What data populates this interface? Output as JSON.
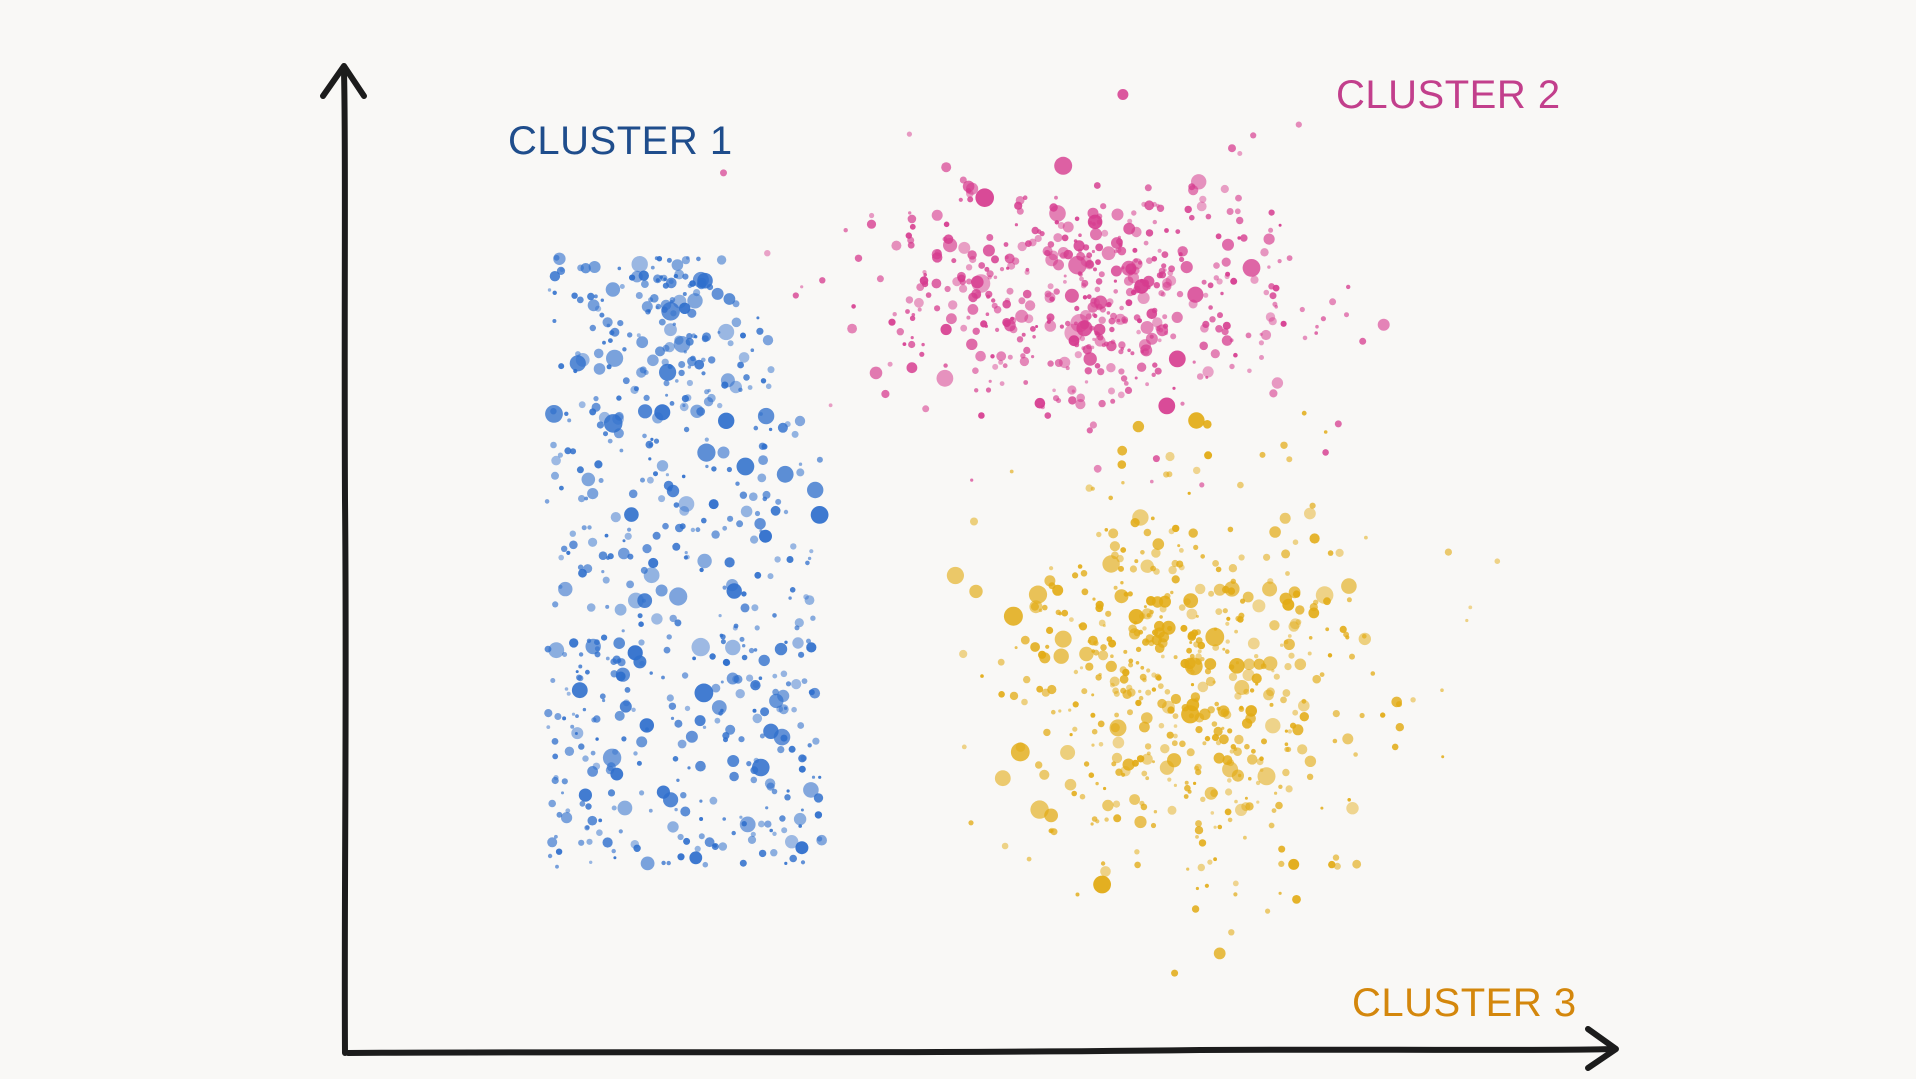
{
  "chart_data": {
    "type": "scatter",
    "title": "",
    "xlabel": "",
    "ylabel": "",
    "xlim": [
      0,
      100
    ],
    "ylim": [
      0,
      100
    ],
    "grid": false,
    "legend": "none",
    "series": [
      {
        "name": "CLUSTER 1",
        "color": "#2f6fcc",
        "label_color": "#1f4d8c",
        "count": 620,
        "center": [
          25,
          48
        ],
        "spread": [
          11,
          28
        ]
      },
      {
        "name": "CLUSTER 2",
        "color": "#d63c8f",
        "label_color": "#c23f8c",
        "count": 520,
        "center": [
          60,
          77
        ],
        "spread": [
          17,
          12
        ]
      },
      {
        "name": "CLUSTER 3",
        "color": "#e2ab15",
        "label_color": "#d4870c",
        "count": 560,
        "center": [
          69,
          35
        ],
        "spread": [
          15,
          20
        ]
      }
    ]
  }
}
